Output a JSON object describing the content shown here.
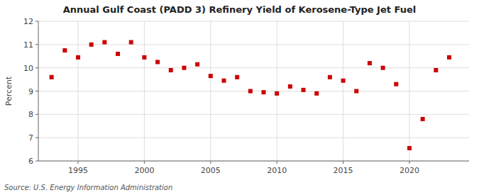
{
  "chart_data": {
    "type": "scatter",
    "title": "Annual Gulf Coast (PADD 3) Refinery Yield of Kerosene-Type Jet Fuel",
    "ylabel": "Percent",
    "annotations": [
      "Source: U.S. Energy Information Administration"
    ],
    "x": [
      1993,
      1994,
      1995,
      1996,
      1997,
      1998,
      1999,
      2000,
      2001,
      2002,
      2003,
      2004,
      2005,
      2006,
      2007,
      2008,
      2009,
      2010,
      2011,
      2012,
      2013,
      2014,
      2015,
      2016,
      2017,
      2018,
      2019,
      2020,
      2021,
      2022,
      2023
    ],
    "values": [
      9.6,
      10.75,
      10.45,
      11.0,
      11.1,
      10.6,
      11.1,
      10.45,
      10.25,
      9.9,
      10.0,
      10.15,
      9.65,
      9.45,
      9.6,
      9.0,
      8.95,
      8.9,
      9.2,
      9.05,
      8.9,
      9.6,
      9.45,
      9.0,
      10.2,
      10.0,
      9.3,
      6.55,
      7.8,
      9.9,
      10.45
    ],
    "color": "#cc0000",
    "marker": "square",
    "xlim": [
      1992.0,
      2024.5
    ],
    "xticks": [
      1995,
      2000,
      2005,
      2010,
      2015,
      2020
    ],
    "ylim": [
      6,
      12
    ],
    "yticks": [
      6,
      7,
      8,
      9,
      10,
      11,
      12
    ],
    "grid": true
  }
}
